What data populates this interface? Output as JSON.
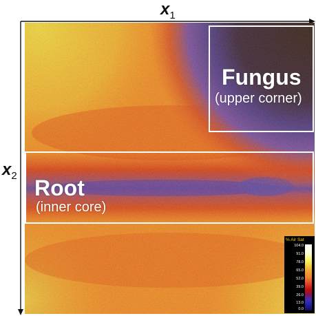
{
  "axes": {
    "x_label": "x",
    "x_sub": "1",
    "y_label": "x",
    "y_sub": "2"
  },
  "regions": {
    "fungus": {
      "title": "Fungus",
      "subtitle": "(upper corner)"
    },
    "root": {
      "title": "Root",
      "subtitle": "(inner core)"
    }
  },
  "scale": {
    "title": "% Air Sat",
    "ticks": [
      "104.0",
      "91.0",
      "78.0",
      "65.0",
      "52.0",
      "39.0",
      "26.0",
      "13.0",
      "0.0"
    ]
  },
  "colors": {
    "frame": "#ffffff",
    "background_warm": "#f09030",
    "yellow": "#e8e040",
    "red": "#d02020",
    "blue": "#3030c0",
    "dark": "#0a0a40"
  }
}
